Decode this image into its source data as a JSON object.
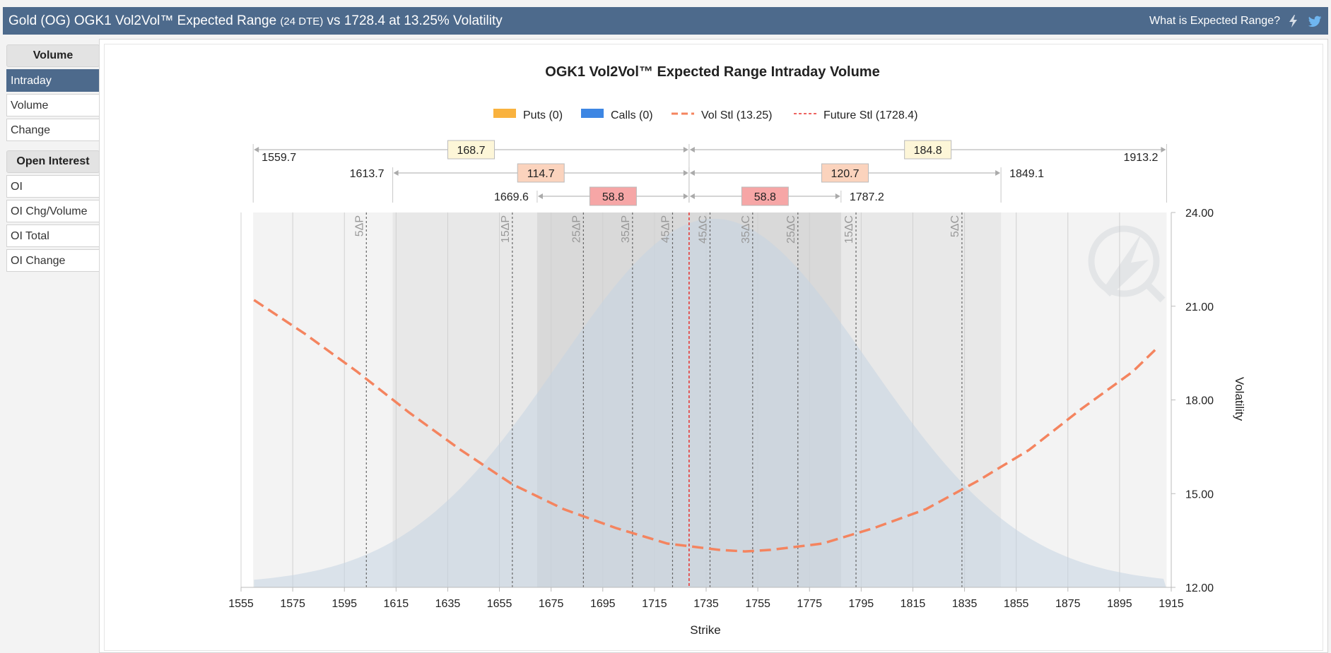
{
  "header": {
    "title_main": "Gold (OG) OGK1 Vol2Vol™ Expected Range",
    "title_dte": "(24 DTE)",
    "title_tail": "vs 1728.4 at 13.25% Volatility",
    "help_link": "What is Expected Range?",
    "icons": [
      "lightning-icon",
      "twitter-bird-icon"
    ]
  },
  "sidebar": {
    "volume_heading": "Volume",
    "volume_items": [
      "Intraday",
      "Volume",
      "Change"
    ],
    "active_item": "Intraday",
    "oi_heading": "Open Interest",
    "oi_items": [
      "OI",
      "OI Chg/Volume",
      "OI Total",
      "OI Change"
    ]
  },
  "chart_data": {
    "type": "line",
    "title": "OGK1 Vol2Vol™ Expected Range Intraday Volume",
    "xlabel": "Strike",
    "ylabel": "Volatility",
    "xlim": [
      1555,
      1915
    ],
    "ylim": [
      12,
      24
    ],
    "x_ticks": [
      1555,
      1575,
      1595,
      1615,
      1635,
      1655,
      1675,
      1695,
      1715,
      1735,
      1755,
      1775,
      1795,
      1815,
      1835,
      1855,
      1875,
      1895,
      1915
    ],
    "y_ticks": [
      "12.00",
      "15.00",
      "18.00",
      "21.00",
      "24.00"
    ],
    "grid": true,
    "legend_position": "top-center",
    "legend": [
      "Puts (0)",
      "Calls (0)",
      "Vol Stl (13.25)",
      "Future Stl (1728.4)"
    ],
    "puts_volume": 0,
    "calls_volume": 0,
    "future_settlement": 1728.4,
    "vol_settlement": 13.25,
    "series": [
      {
        "name": "Vol Stl (13.25)",
        "color": "#f4845f",
        "x": [
          1560,
          1580,
          1600,
          1620,
          1640,
          1660,
          1680,
          1700,
          1720,
          1740,
          1750,
          1760,
          1780,
          1800,
          1820,
          1840,
          1860,
          1880,
          1900,
          1910
        ],
        "values": [
          21.2,
          20.1,
          18.9,
          17.6,
          16.4,
          15.3,
          14.5,
          13.9,
          13.4,
          13.2,
          13.15,
          13.2,
          13.4,
          13.9,
          14.5,
          15.4,
          16.4,
          17.7,
          18.9,
          19.7
        ]
      }
    ],
    "distribution_curve": {
      "mean": 1738,
      "sd": 60,
      "base": 12.1,
      "peak": 23.8,
      "from": 1560,
      "to": 1913
    },
    "expected_ranges": [
      {
        "low": "1559.7",
        "high": "1913.2",
        "low_width": "168.7",
        "high_width": "184.8",
        "fill": "#f3f3f3",
        "label_bg": "#fdf6d8"
      },
      {
        "low": "1613.7",
        "high": "1849.1",
        "low_width": "114.7",
        "high_width": "120.7",
        "fill": "#e8e8e8",
        "label_bg": "#fbd3bd"
      },
      {
        "low": "1669.6",
        "high": "1787.2",
        "low_width": "58.8",
        "high_width": "58.8",
        "fill": "#d9d9d9",
        "label_bg": "#f6a6a6"
      }
    ],
    "delta_lines": [
      {
        "label": "5ΔP",
        "x": 1603.5
      },
      {
        "label": "15ΔP",
        "x": 1660
      },
      {
        "label": "25ΔP",
        "x": 1687.5
      },
      {
        "label": "35ΔP",
        "x": 1706.5
      },
      {
        "label": "45ΔP",
        "x": 1722
      },
      {
        "label": "45ΔC",
        "x": 1736.5
      },
      {
        "label": "35ΔC",
        "x": 1753
      },
      {
        "label": "25ΔC",
        "x": 1770.5
      },
      {
        "label": "15ΔC",
        "x": 1793
      },
      {
        "label": "5ΔC",
        "x": 1834
      }
    ]
  }
}
